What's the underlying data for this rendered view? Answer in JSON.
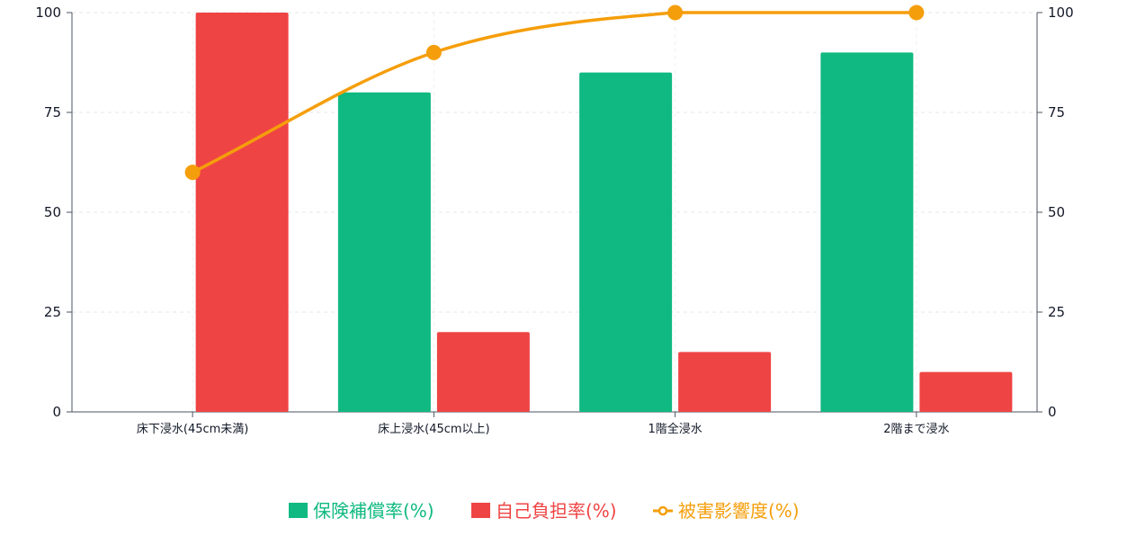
{
  "chart_data": {
    "type": "bar",
    "categories": [
      "床下浸水(45cm未満)",
      "床上浸水(45cm以上)",
      "1階全浸水",
      "2階まで浸水"
    ],
    "series": [
      {
        "name": "保険補償率(%)",
        "type": "bar",
        "axis": "left",
        "color": "#10b981",
        "values": [
          0,
          80,
          85,
          90
        ]
      },
      {
        "name": "自己負担率(%)",
        "type": "bar",
        "axis": "left",
        "color": "#ef4444",
        "values": [
          100,
          20,
          15,
          10
        ]
      },
      {
        "name": "被害影響度(%)",
        "type": "line",
        "axis": "right",
        "color": "#f59e0b",
        "values": [
          60,
          90,
          100,
          100
        ]
      }
    ],
    "ylim": [
      0,
      100
    ],
    "y2lim": [
      0,
      100
    ],
    "yticks": [
      "0",
      "25",
      "50",
      "75",
      "100"
    ],
    "y2ticks": [
      "0",
      "25",
      "50",
      "75",
      "100"
    ],
    "grid": true,
    "legend_position": "bottom-center"
  }
}
